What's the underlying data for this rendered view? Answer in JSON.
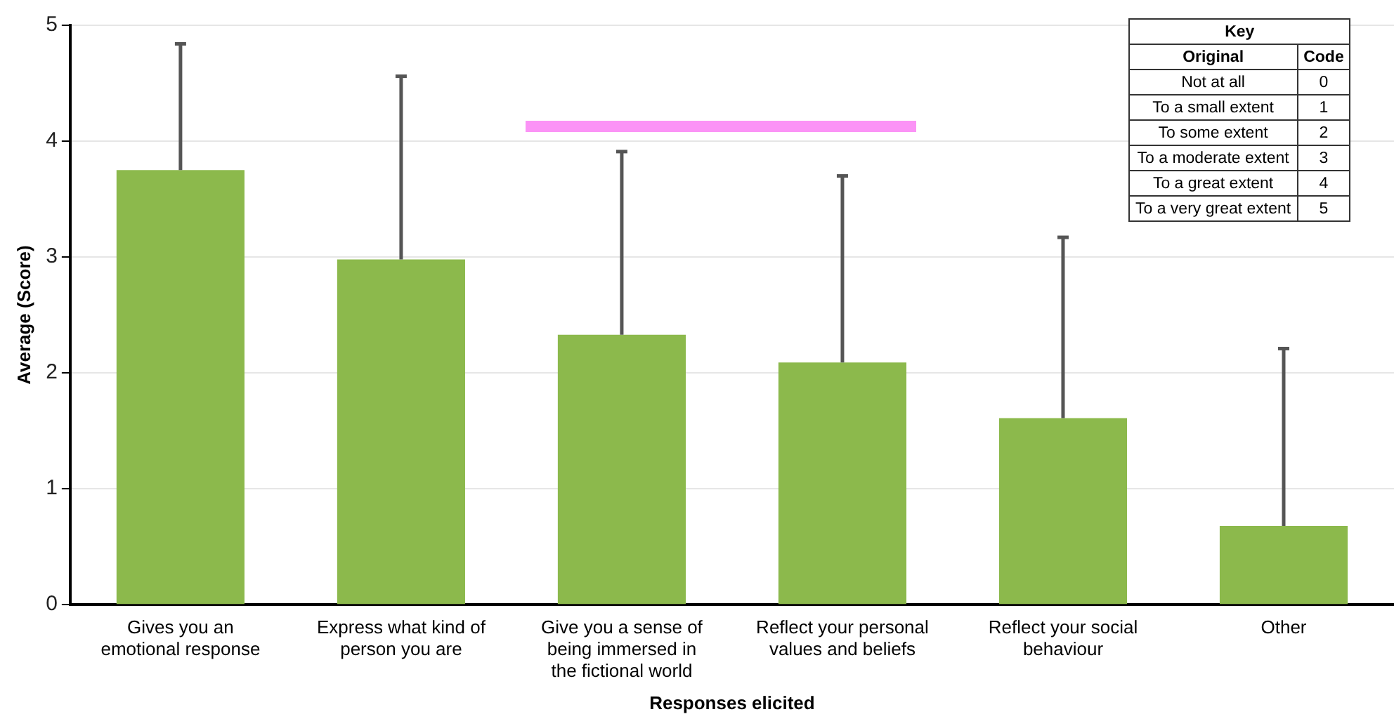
{
  "chart_data": {
    "type": "bar",
    "xlabel": "Responses elicited",
    "ylabel": "Average (Score)",
    "categories": [
      "Gives you an emotional response",
      "Express what kind of person you are",
      "Give you a sense of being immersed in the fictional world",
      "Reflect your personal values and beliefs",
      "Reflect your social behaviour",
      "Other"
    ],
    "values": [
      3.75,
      2.98,
      2.33,
      2.09,
      1.61,
      0.68
    ],
    "errors": [
      [
        3.75,
        4.84
      ],
      [
        2.98,
        4.56
      ],
      [
        2.33,
        3.91
      ],
      [
        2.09,
        3.7
      ],
      [
        1.61,
        3.17
      ],
      [
        0.68,
        2.21
      ]
    ],
    "color": "#8cb94c",
    "ylim": [
      0,
      5
    ],
    "yticks": [
      0,
      1,
      2,
      3,
      4,
      5
    ],
    "grid": "y",
    "annotations": [
      "Key",
      "Original",
      "Code",
      "Not at all",
      "0",
      "To a small extent",
      "1",
      "To some extent",
      "2",
      "To a moderate extent",
      "3",
      "To a great extent",
      "4",
      "To a very great extent",
      "5"
    ]
  }
}
